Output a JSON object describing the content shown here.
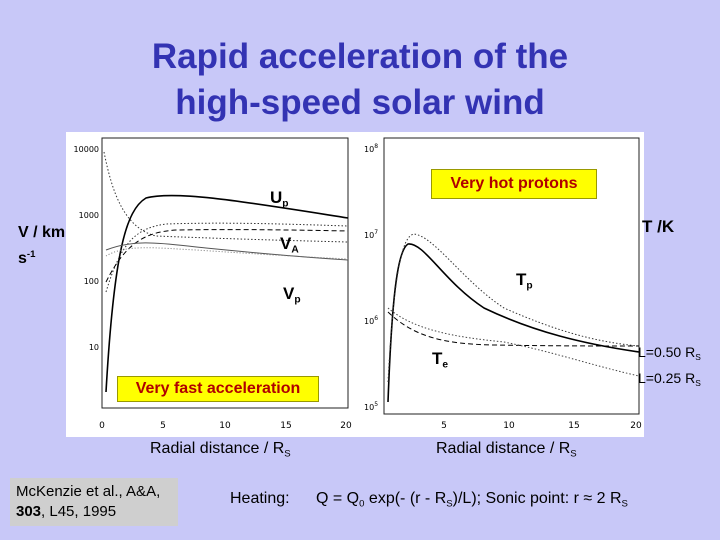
{
  "title": {
    "line1": "Rapid acceleration of the",
    "line2": "high-speed solar wind"
  },
  "left_plot": {
    "y_axis_label": "V / km",
    "y_axis_unit": "s",
    "y_axis_unit_exp": "-1",
    "y_ticks": [
      "10000",
      "1000",
      "100",
      "10"
    ],
    "x_ticks": [
      "0",
      "5",
      "10",
      "15",
      "20"
    ],
    "curve_labels": {
      "up_main": "U",
      "up_sub": "p",
      "va_main": "V",
      "va_sub": "A",
      "vp_main": "V",
      "vp_sub": "p"
    },
    "callout": "Very fast acceleration",
    "x_caption": "Radial distance / R",
    "x_caption_sub": "S"
  },
  "right_plot": {
    "y_axis_label": "T /K",
    "y_ticks": [
      "10",
      "10",
      "10",
      "10",
      "10"
    ],
    "y_tick_exps": [
      "8",
      "7",
      "6",
      "5",
      ""
    ],
    "x_ticks": [
      "5",
      "10",
      "15",
      "20"
    ],
    "callout": "Very hot protons",
    "curve_labels": {
      "tp_main": "T",
      "tp_sub": "p",
      "te_main": "T",
      "te_sub": "e"
    },
    "legend": [
      {
        "text": "L=0.50 R",
        "sub": "S"
      },
      {
        "text": "L=0.25 R",
        "sub": "S"
      }
    ],
    "x_caption": "Radial distance / R",
    "x_caption_sub": "S"
  },
  "reference": {
    "line1": "McKenzie et al., A&A,",
    "volume": "303",
    "rest": ", L45, 1995"
  },
  "heating": {
    "label": "Heating:",
    "eq_a": "Q = Q",
    "eq_a_sub": "0",
    "eq_b": " exp(- (r - R",
    "eq_b_sub": "S",
    "eq_c": ")/L);  Sonic point:  r ≈ 2 R",
    "eq_c_sub": "S"
  }
}
